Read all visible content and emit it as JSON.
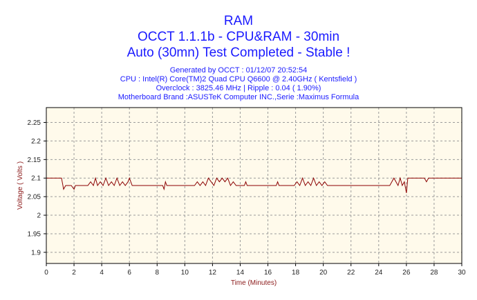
{
  "header": {
    "title": "RAM",
    "subtitle": "OCCT 1.1.1b - CPU&RAM - 30min",
    "status": "Auto (30mn) Test Completed - Stable !",
    "generated": "Generated by OCCT : 01/12/07 20:52:54",
    "cpu": "CPU : Intel(R) Core(TM)2 Quad CPU Q6600 @ 2.40GHz ( Kentsfield )",
    "overclock": "Overclock : 3825.46 MHz | Ripple : 0.04 ( 1.90%)",
    "motherboard": "Motherboard Brand :ASUSTeK Computer INC.,Serie :Maximus Formula"
  },
  "colors": {
    "title": "#1a1aff",
    "line": "#8b0000",
    "plot_bg": "#fffaeb",
    "grid": "#9a9a9a",
    "axis_label": "#8b1a1a"
  },
  "chart_data": {
    "type": "line",
    "title": "RAM",
    "xlabel": "Time (Minutes)",
    "ylabel": "Voltage ( Volts )",
    "xlim": [
      0,
      30
    ],
    "ylim": [
      1.87,
      2.29
    ],
    "x_ticks": [
      "0",
      "2",
      "4",
      "6",
      "8",
      "10",
      "12",
      "14",
      "16",
      "18",
      "20",
      "22",
      "24",
      "26",
      "28",
      "30"
    ],
    "y_ticks": [
      "1.9",
      "1.95",
      "2",
      "2.05",
      "2.1",
      "2.15",
      "2.2",
      "2.25"
    ],
    "x_tick_values": [
      0,
      2,
      4,
      6,
      8,
      10,
      12,
      14,
      16,
      18,
      20,
      22,
      24,
      26,
      28,
      30
    ],
    "y_tick_values": [
      1.9,
      1.95,
      2.0,
      2.05,
      2.1,
      2.15,
      2.2,
      2.25
    ],
    "grid": true,
    "series": [
      {
        "x": [
          0,
          1.1,
          1.25,
          1.4,
          1.8,
          2.0,
          2.1,
          2.3,
          3.0,
          3.2,
          3.4,
          3.55,
          3.7,
          3.9,
          4.1,
          4.3,
          4.5,
          4.7,
          4.9,
          5.1,
          5.3,
          5.5,
          5.7,
          5.9,
          6.0,
          6.2,
          6.4,
          8.4,
          8.5,
          8.6,
          8.7,
          10.7,
          10.9,
          11.1,
          11.3,
          11.5,
          11.7,
          11.9,
          12.1,
          12.3,
          12.5,
          12.7,
          12.9,
          13.1,
          13.3,
          13.5,
          13.7,
          13.9,
          14.1,
          14.3,
          14.4,
          14.5,
          16.6,
          16.7,
          16.8,
          17.9,
          18.1,
          18.3,
          18.5,
          18.7,
          18.9,
          19.1,
          19.3,
          19.5,
          19.7,
          19.9,
          20.1,
          20.3,
          24.8,
          24.95,
          25.1,
          25.25,
          25.4,
          25.55,
          25.7,
          25.85,
          26.0,
          26.1,
          27.3,
          27.45,
          27.6,
          27.8,
          30
        ],
        "y": [
          2.1,
          2.1,
          2.07,
          2.08,
          2.08,
          2.07,
          2.08,
          2.08,
          2.08,
          2.09,
          2.08,
          2.1,
          2.08,
          2.09,
          2.08,
          2.1,
          2.08,
          2.09,
          2.08,
          2.1,
          2.08,
          2.09,
          2.08,
          2.09,
          2.1,
          2.08,
          2.08,
          2.08,
          2.07,
          2.09,
          2.08,
          2.08,
          2.09,
          2.08,
          2.09,
          2.08,
          2.1,
          2.09,
          2.08,
          2.1,
          2.09,
          2.1,
          2.09,
          2.1,
          2.08,
          2.09,
          2.08,
          2.08,
          2.08,
          2.08,
          2.09,
          2.08,
          2.08,
          2.09,
          2.08,
          2.08,
          2.09,
          2.08,
          2.1,
          2.08,
          2.09,
          2.08,
          2.1,
          2.08,
          2.09,
          2.08,
          2.09,
          2.08,
          2.08,
          2.09,
          2.1,
          2.09,
          2.08,
          2.1,
          2.08,
          2.09,
          2.06,
          2.1,
          2.1,
          2.09,
          2.1,
          2.1,
          2.1
        ]
      }
    ]
  }
}
